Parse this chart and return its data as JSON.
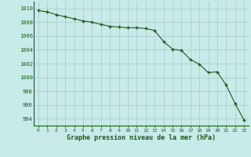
{
  "hours": [
    0,
    1,
    2,
    3,
    4,
    5,
    6,
    7,
    8,
    9,
    10,
    11,
    12,
    13,
    14,
    15,
    16,
    17,
    18,
    19,
    20,
    21,
    22,
    23
  ],
  "pressure": [
    1009.7,
    1009.5,
    1009.1,
    1008.8,
    1008.5,
    1008.2,
    1008.0,
    1007.7,
    1007.4,
    1007.3,
    1007.2,
    1007.2,
    1007.1,
    1006.8,
    1005.2,
    1004.1,
    1003.9,
    1002.6,
    1001.9,
    1000.7,
    1000.8,
    998.9,
    996.2,
    993.8
  ],
  "ylim": [
    993,
    1011
  ],
  "yticks": [
    994,
    996,
    998,
    1000,
    1002,
    1004,
    1006,
    1008,
    1010
  ],
  "line_color": "#1a5c1a",
  "marker_color": "#1a5c1a",
  "bg_color": "#c8eae8",
  "grid_color": "#a8c8c8",
  "xlabel": "Graphe pression niveau de la mer (hPa)",
  "fig_bg": "#c8eae8",
  "xtick_labels": [
    "0",
    "1",
    "2",
    "3",
    "4",
    "5",
    "6",
    "7",
    "8",
    "9",
    "10",
    "11",
    "12",
    "13",
    "14",
    "15",
    "16",
    "17",
    "18",
    "19",
    "20",
    "21",
    "22",
    "23"
  ]
}
